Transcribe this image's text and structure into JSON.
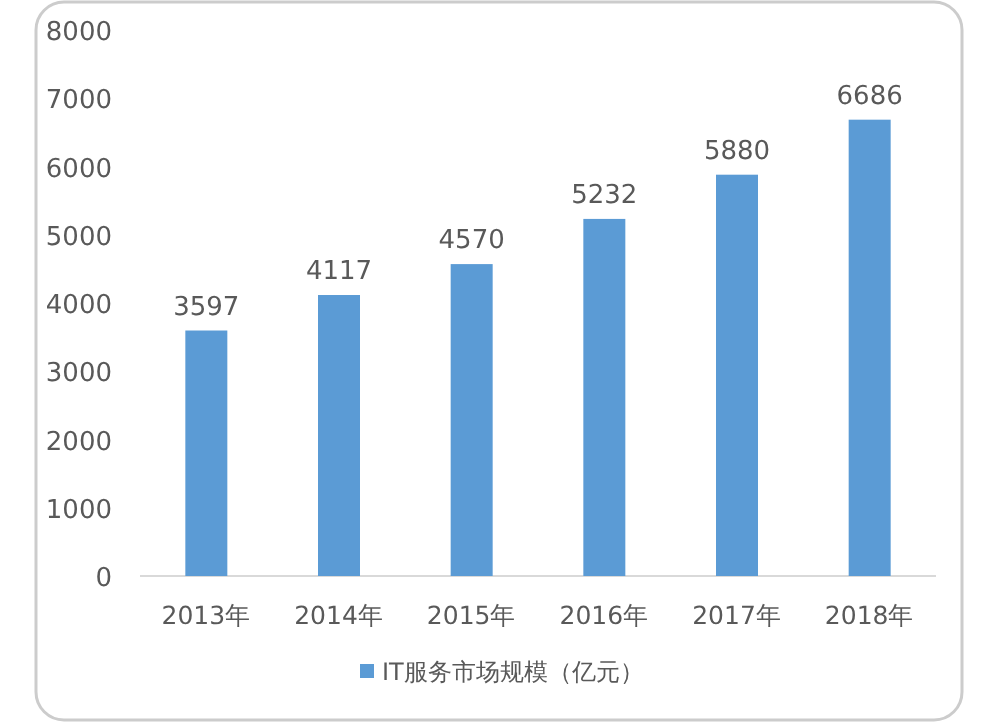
{
  "chart_data": {
    "type": "bar",
    "categories": [
      "2013年",
      "2014年",
      "2015年",
      "2016年",
      "2017年",
      "2018年"
    ],
    "series": [
      {
        "name": "IT服务市场规模（亿元）",
        "color": "#5b9bd5",
        "values": [
          3597,
          4117,
          4570,
          5232,
          5880,
          6686
        ]
      }
    ],
    "ylim": [
      0,
      8000
    ],
    "yticks": [
      0,
      1000,
      2000,
      3000,
      4000,
      5000,
      6000,
      7000,
      8000
    ],
    "data_labels": true,
    "grid": false,
    "legend": "bottom"
  }
}
